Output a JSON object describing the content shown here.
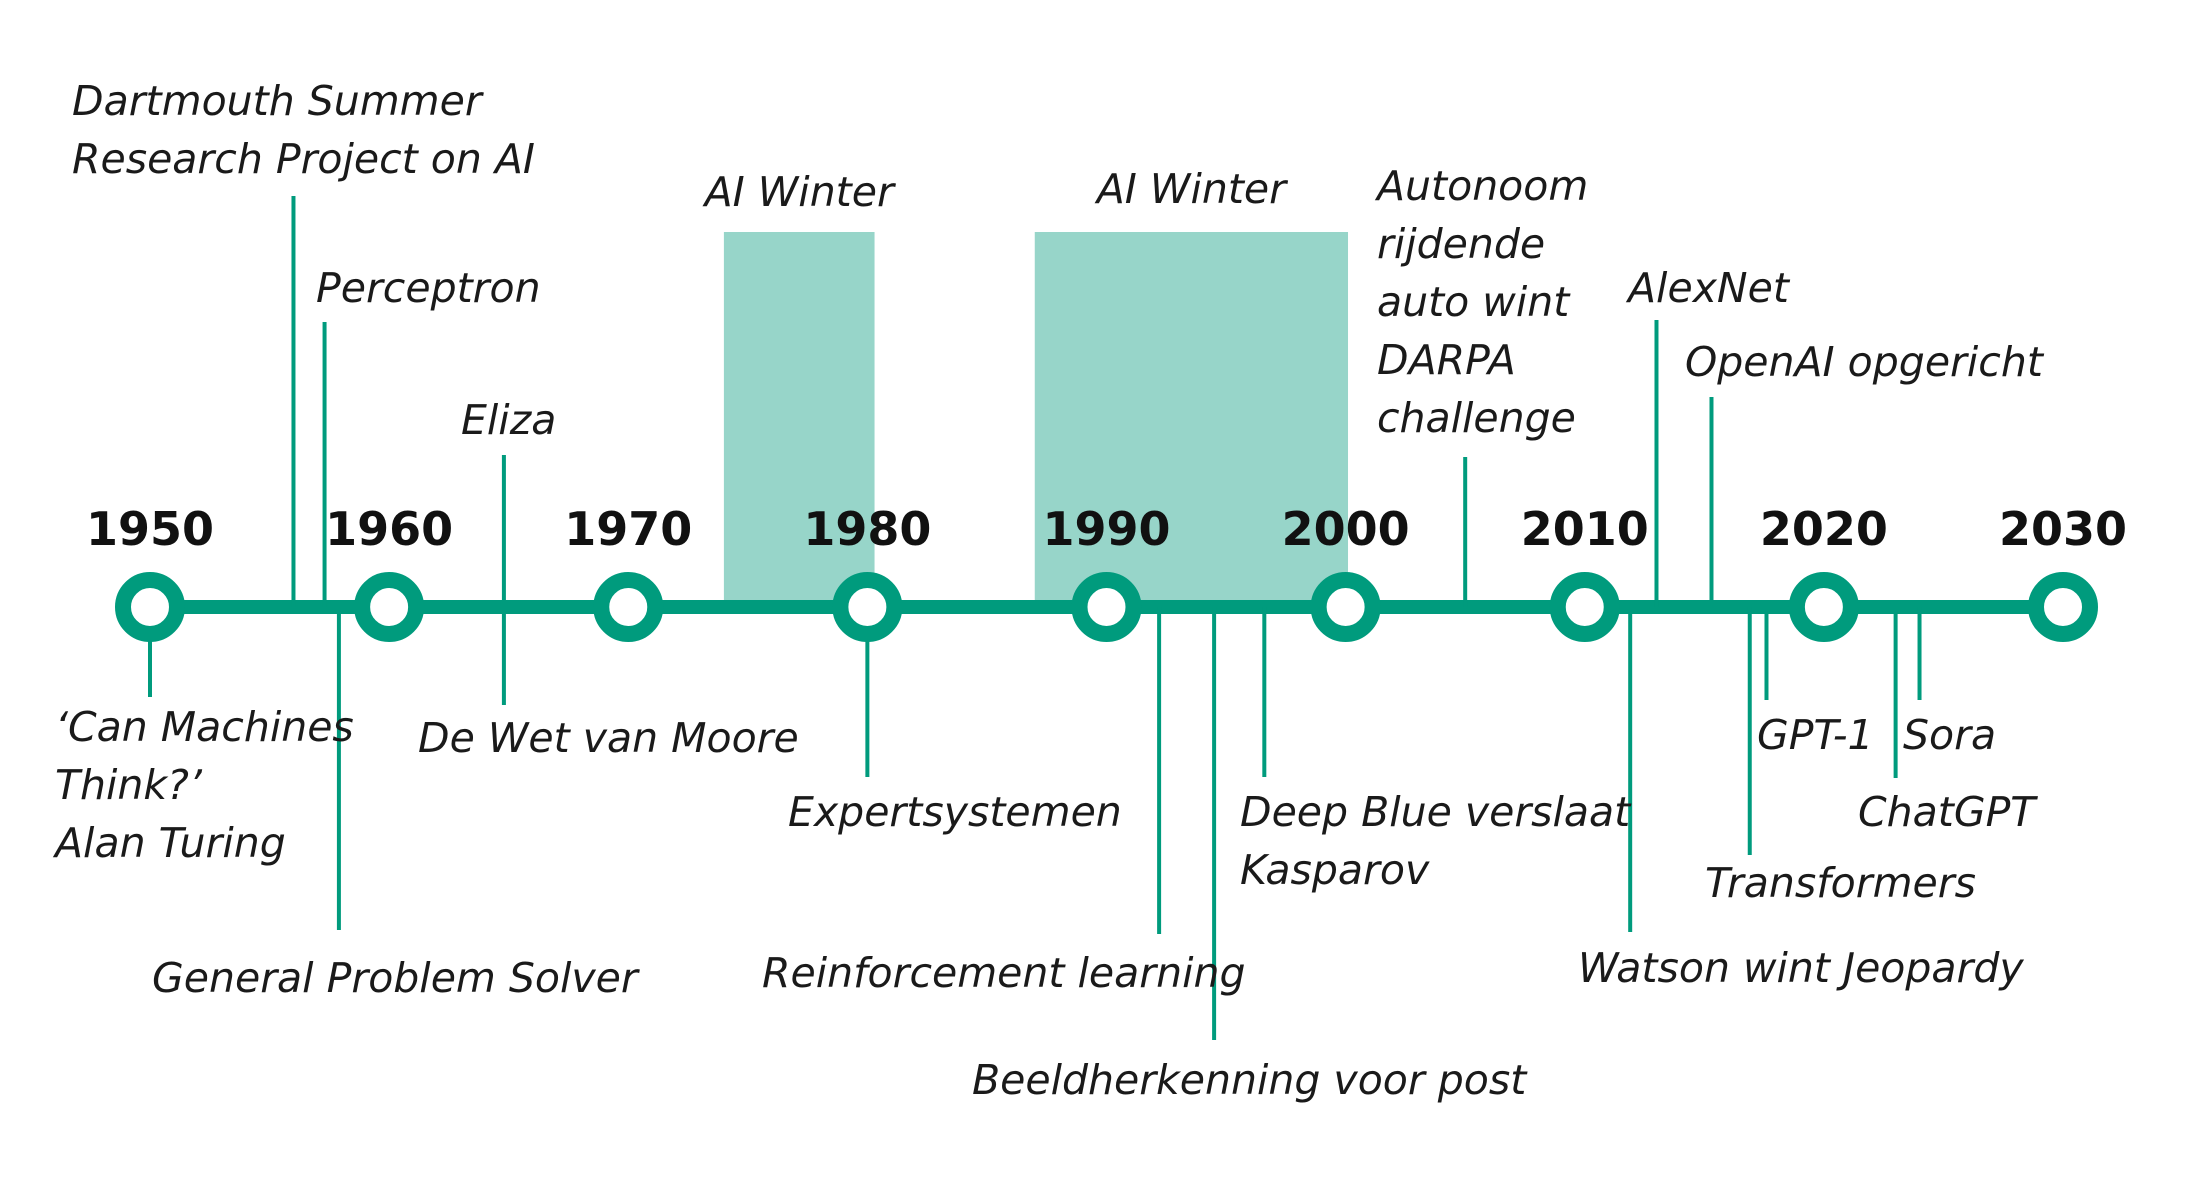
{
  "colors": {
    "accent": "#009b7d",
    "winter": "#97d5c9",
    "text": "#1a1a1a",
    "background": "#ffffff"
  },
  "decades": [
    "1950",
    "1960",
    "1970",
    "1980",
    "1990",
    "2000",
    "2010",
    "2020",
    "2030"
  ],
  "periods": [
    {
      "id": "winter-1",
      "label": "AI Winter",
      "start": 1974,
      "end": 1980.3
    },
    {
      "id": "winter-2",
      "label": "AI Winter",
      "start": 1987,
      "end": 2000.1
    }
  ],
  "events": [
    {
      "id": "turing",
      "year": 1950,
      "side": "below",
      "lines": [
        "‘Can Machines",
        "Think?’",
        "Alan Turing"
      ]
    },
    {
      "id": "dartmouth",
      "year": 1956,
      "side": "above",
      "lines": [
        "Dartmouth Summer",
        "Research Project on AI"
      ]
    },
    {
      "id": "perceptron",
      "year": 1957.3,
      "side": "above",
      "lines": [
        "Perceptron"
      ]
    },
    {
      "id": "gps",
      "year": 1957.9,
      "side": "below",
      "lines": [
        "General Problem Solver"
      ]
    },
    {
      "id": "eliza",
      "year": 1964.8,
      "side": "above",
      "lines": [
        "Eliza"
      ]
    },
    {
      "id": "moore",
      "year": 1964.8,
      "side": "below",
      "lines": [
        "De Wet van Moore"
      ]
    },
    {
      "id": "expert",
      "year": 1980,
      "side": "below",
      "lines": [
        "Expertsystemen"
      ]
    },
    {
      "id": "rl",
      "year": 1992.2,
      "side": "below",
      "lines": [
        "Reinforcement learning"
      ]
    },
    {
      "id": "image",
      "year": 1994.5,
      "side": "below",
      "lines": [
        "Beeldherkenning voor post"
      ]
    },
    {
      "id": "deepblue",
      "year": 1996.6,
      "side": "below",
      "lines": [
        "Deep Blue verslaat",
        "Kasparov"
      ]
    },
    {
      "id": "darpa",
      "year": 2005,
      "side": "above",
      "lines": [
        "Autonoom",
        "rijdende",
        "auto wint",
        "DARPA",
        "challenge"
      ]
    },
    {
      "id": "watson",
      "year": 2011.9,
      "side": "below",
      "lines": [
        "Watson wint Jeopardy"
      ]
    },
    {
      "id": "alexnet",
      "year": 2013,
      "side": "above",
      "lines": [
        "AlexNet"
      ]
    },
    {
      "id": "openai",
      "year": 2015.3,
      "side": "above",
      "lines": [
        "OpenAI opgericht"
      ]
    },
    {
      "id": "transformers",
      "year": 2016.9,
      "side": "below",
      "lines": [
        "Transformers"
      ]
    },
    {
      "id": "gpt1",
      "year": 2017.6,
      "side": "below",
      "lines": [
        "GPT-1"
      ]
    },
    {
      "id": "chatgpt",
      "year": 2023,
      "side": "below",
      "lines": [
        "ChatGPT"
      ]
    },
    {
      "id": "sora",
      "year": 2024,
      "side": "below",
      "lines": [
        "Sora"
      ]
    }
  ]
}
